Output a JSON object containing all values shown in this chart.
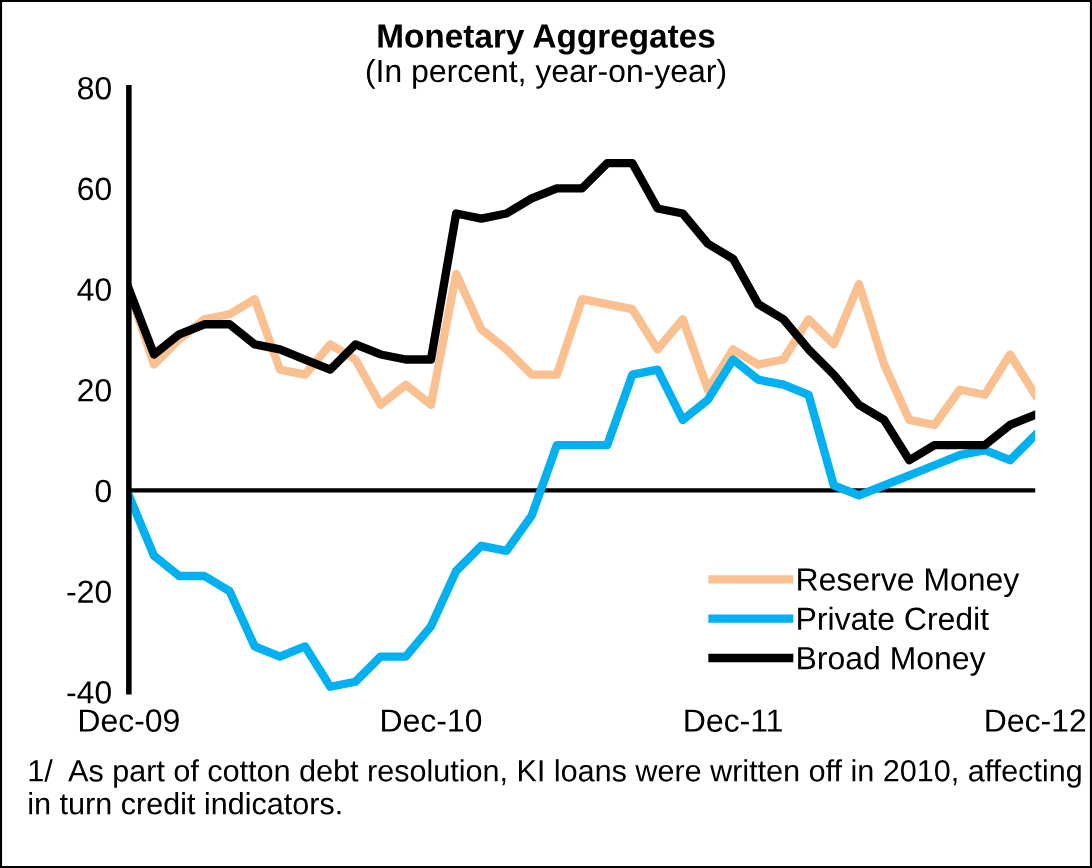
{
  "chart_data": {
    "type": "line",
    "title": "Monetary Aggregates",
    "subtitle": "(In percent, year-on-year)",
    "categories": [
      "Dec-09",
      null,
      null,
      null,
      null,
      null,
      null,
      null,
      null,
      null,
      null,
      null,
      "Dec-10",
      null,
      null,
      null,
      null,
      null,
      null,
      null,
      null,
      null,
      null,
      null,
      "Dec-11",
      null,
      null,
      null,
      null,
      null,
      null,
      null,
      null,
      null,
      null,
      null,
      "Dec-12"
    ],
    "series": [
      {
        "name": "Reserve Money",
        "color": "#fac090",
        "values": [
          40,
          25,
          30,
          34,
          35,
          38,
          24,
          23,
          29,
          26,
          17,
          21,
          17,
          43,
          32,
          28,
          23,
          23,
          38,
          37,
          36,
          28,
          34,
          20,
          28,
          25,
          26,
          34,
          29,
          41,
          25,
          14,
          13,
          20,
          19,
          27,
          19
        ]
      },
      {
        "name": "Private Credit",
        "color": "#00b0f0",
        "values": [
          -1,
          -13,
          -17,
          -17,
          -20,
          -31,
          -33,
          -31,
          -39,
          -38,
          -33,
          -33,
          -27,
          -16,
          -11,
          -12,
          -5,
          9,
          9,
          9,
          23,
          24,
          14,
          18,
          26,
          22,
          21,
          19,
          1,
          -1,
          1,
          3,
          5,
          7,
          8,
          6,
          11
        ]
      },
      {
        "name": "Broad Money",
        "color": "#000000",
        "values": [
          40,
          27,
          31,
          33,
          33,
          29,
          28,
          26,
          24,
          29,
          27,
          26,
          26,
          55,
          54,
          55,
          58,
          60,
          60,
          65,
          65,
          56,
          55,
          49,
          46,
          37,
          34,
          28,
          23,
          17,
          14,
          6,
          9,
          9,
          9,
          13,
          15
        ]
      }
    ],
    "ylim": [
      -40,
      80
    ],
    "yticks": [
      -40,
      -20,
      0,
      20,
      40,
      60,
      80
    ],
    "ref_lines": [
      {
        "axis": "y",
        "value": 0,
        "color": "#000000"
      }
    ],
    "legend": "bottom right",
    "marker": "none",
    "line_style": "solid",
    "annotations": [
      "1/  As part of cotton debt resolution, KI loans were written off in 2010, affecting in turn credit indicators."
    ]
  }
}
